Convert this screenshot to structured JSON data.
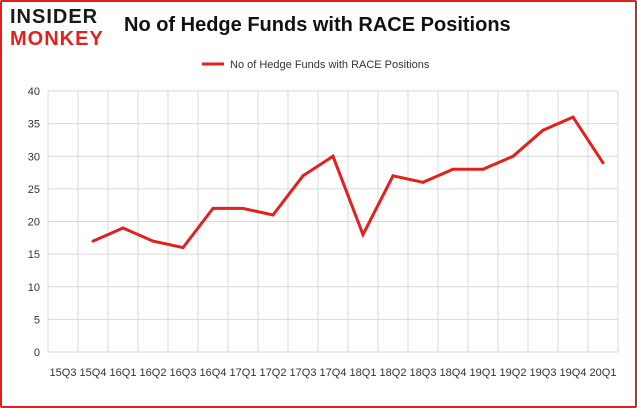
{
  "header": {
    "logo_line1": "INSIDER",
    "logo_line2": "MONKEY",
    "title": "No of Hedge Funds with RACE Positions"
  },
  "colors": {
    "series": "#e2211c",
    "grid": "#d9d9d9",
    "accent": "#e2211c"
  },
  "chart_data": {
    "type": "line",
    "title": "No of Hedge Funds with RACE Positions",
    "xlabel": "",
    "ylabel": "",
    "ylim": [
      0,
      40
    ],
    "yticks": [
      0,
      5,
      10,
      15,
      20,
      25,
      30,
      35,
      40
    ],
    "grid": true,
    "legend": "top-center",
    "categories": [
      "15Q3",
      "15Q4",
      "16Q1",
      "16Q2",
      "16Q3",
      "16Q4",
      "17Q1",
      "17Q2",
      "17Q3",
      "17Q4",
      "18Q1",
      "18Q2",
      "18Q3",
      "18Q4",
      "19Q1",
      "19Q2",
      "19Q3",
      "19Q4",
      "20Q1"
    ],
    "series": [
      {
        "name": "No of Hedge Funds with RACE Positions",
        "values": [
          null,
          17,
          19,
          17,
          16,
          22,
          22,
          21,
          27,
          30,
          18,
          27,
          26,
          28,
          28,
          30,
          34,
          36,
          29
        ]
      }
    ]
  }
}
